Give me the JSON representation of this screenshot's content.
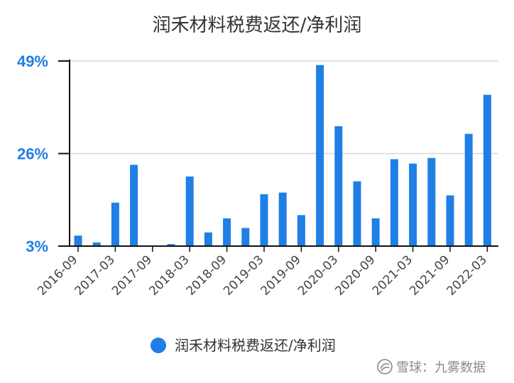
{
  "chart_data": {
    "type": "bar",
    "title": "润禾材料税费返还/净利润",
    "categories": [
      "2016-09",
      "2016-12",
      "2017-03",
      "2017-06",
      "2017-09",
      "2017-12",
      "2018-03",
      "2018-06",
      "2018-09",
      "2018-12",
      "2019-03",
      "2019-06",
      "2019-09",
      "2019-12",
      "2020-03",
      "2020-06",
      "2020-09",
      "2020-12",
      "2021-03",
      "2021-06",
      "2021-09",
      "2021-12",
      "2022-03"
    ],
    "x_tick_labels": [
      "2016-09",
      "2017-03",
      "2017-09",
      "2018-03",
      "2018-09",
      "2019-03",
      "2019-09",
      "2020-03",
      "2020-09",
      "2021-03",
      "2021-09",
      "2022-03"
    ],
    "series": [
      {
        "name": "润禾材料税费返还/净利润",
        "values": [
          5.6,
          3.9,
          13.8,
          23.2,
          3.0,
          3.5,
          20.3,
          6.4,
          9.9,
          7.5,
          15.9,
          16.3,
          10.7,
          48.0,
          32.8,
          19.1,
          9.9,
          24.6,
          23.5,
          24.9,
          15.6,
          30.9,
          40.6
        ]
      }
    ],
    "y_ticks": [
      3,
      26,
      49
    ],
    "y_tick_labels": [
      "3%",
      "26%",
      "49%"
    ],
    "ylim": [
      3,
      49
    ],
    "grid": true,
    "legend_position": "bottom",
    "colors": {
      "bar": "#1f7fe5",
      "ytick": "#1f7fe5",
      "grid": "#d8d8d8"
    }
  },
  "watermark": {
    "text": "雪球：九雾数据"
  }
}
